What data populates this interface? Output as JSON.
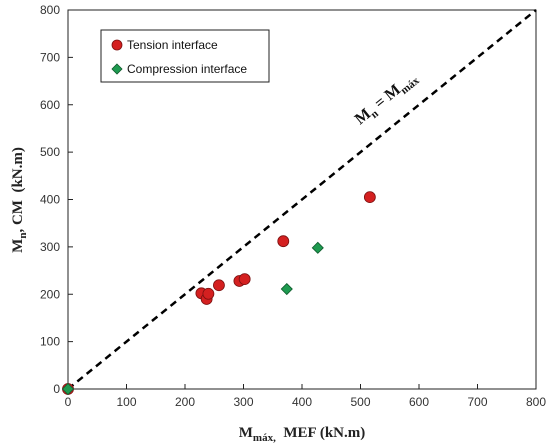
{
  "chart_data": {
    "type": "scatter",
    "xlim": [
      0,
      800
    ],
    "ylim": [
      0,
      800
    ],
    "xticks": [
      0,
      100,
      200,
      300,
      400,
      500,
      600,
      700,
      800
    ],
    "yticks": [
      0,
      100,
      200,
      300,
      400,
      500,
      600,
      700,
      800
    ],
    "xlabel": {
      "main": "M",
      "sub": "máx,",
      "rest": "  MEF (kN.m)"
    },
    "ylabel": {
      "main": "M",
      "sub": "n",
      "rest": ", CM  (kN.m)"
    },
    "grid": false,
    "legend_position": "top-left",
    "reference_line": {
      "points": [
        [
          0,
          0
        ],
        [
          800,
          800
        ]
      ],
      "style": "dashed",
      "label": {
        "lhs_main": "M",
        "lhs_sub": "n",
        "eq": " = ",
        "rhs_main": "M",
        "rhs_sub": "máx"
      }
    },
    "series": [
      {
        "name": "Tension interface",
        "marker": "circle",
        "color": "#d42020",
        "points": [
          [
            0,
            0
          ],
          [
            228,
            202
          ],
          [
            237,
            190
          ],
          [
            240,
            201
          ],
          [
            258,
            219
          ],
          [
            293,
            228
          ],
          [
            302,
            232
          ],
          [
            368,
            312
          ],
          [
            516,
            405
          ]
        ]
      },
      {
        "name": "Compression interface",
        "marker": "diamond",
        "color": "#1e9a50",
        "points": [
          [
            0,
            0
          ],
          [
            374,
            211
          ],
          [
            427,
            298
          ]
        ]
      }
    ]
  }
}
